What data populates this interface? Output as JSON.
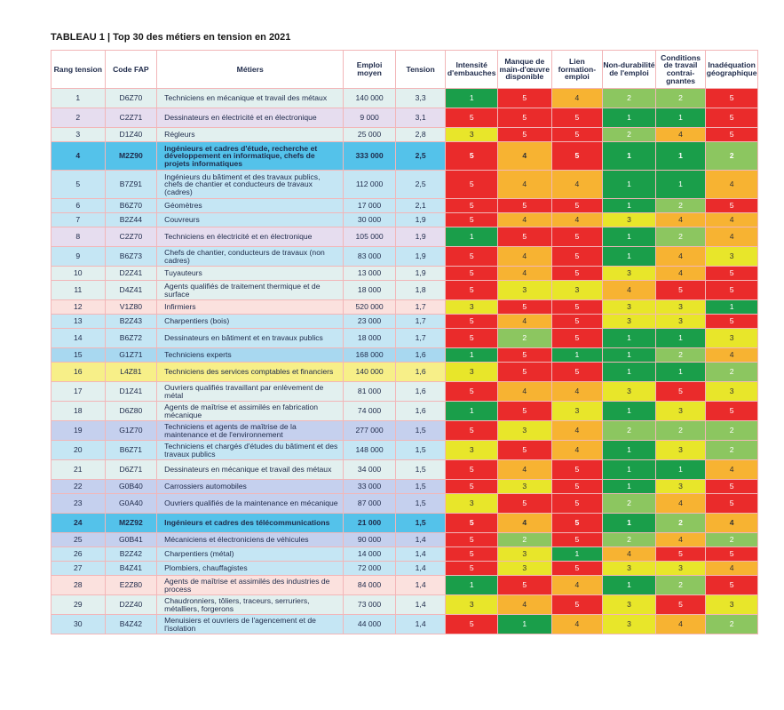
{
  "title": "TABLEAU 1 | Top 30 des métiers en tension en 2021",
  "headers": [
    "Rang tension",
    "Code FAP",
    "Métiers",
    "Emploi moyen",
    "Tension",
    "Intensité d'embauches",
    "Manque de main-d'œuvre disponible",
    "Lien formation-emploi",
    "Non-durabilité de l'emploi",
    "Conditions de travail contrai-gnantes",
    "Inadéquation géographique"
  ],
  "score_colors": {
    "1": "#1a9e4a",
    "2": "#8cc660",
    "3": "#e8e62a",
    "4": "#f7b332",
    "5": "#ea2b2b"
  },
  "row_colors": {
    "teal": "#e2f0ef",
    "lavender": "#e6ddef",
    "blue": "#c5e6f4",
    "cyan": "#54c2ea",
    "yellow": "#f7ef88",
    "peach": "#fbe1de",
    "sky": "#a8d8f0",
    "periwinkle": "#c5d0ee"
  },
  "rows": [
    {
      "rang": "1",
      "code": "D6Z70",
      "metier": "Techniciens en mécanique et travail des métaux",
      "emploi": "140 000",
      "tension": "3,3",
      "scores": [
        "1",
        "5",
        "4",
        "2",
        "2",
        "5"
      ],
      "color": "teal",
      "bold": false
    },
    {
      "rang": "2",
      "code": "C2Z71",
      "metier": "Dessinateurs en électricité et en électronique",
      "emploi": "9 000",
      "tension": "3,1",
      "scores": [
        "5",
        "5",
        "5",
        "1",
        "1",
        "5"
      ],
      "color": "lavender",
      "bold": false
    },
    {
      "rang": "3",
      "code": "D1Z40",
      "metier": "Régleurs",
      "emploi": "25 000",
      "tension": "2,8",
      "scores": [
        "3",
        "5",
        "5",
        "2",
        "4",
        "5"
      ],
      "color": "teal",
      "bold": false
    },
    {
      "rang": "4",
      "code": "M2Z90",
      "metier": "Ingénieurs et cadres d'étude, recherche et développement en informatique, chefs de projets informatiques",
      "emploi": "333 000",
      "tension": "2,5",
      "scores": [
        "5",
        "4",
        "5",
        "1",
        "1",
        "2"
      ],
      "color": "cyan",
      "bold": true
    },
    {
      "rang": "5",
      "code": "B7Z91",
      "metier": "Ingénieurs du bâtiment et des travaux publics, chefs de chantier et conducteurs de travaux (cadres)",
      "emploi": "112 000",
      "tension": "2,5",
      "scores": [
        "5",
        "4",
        "4",
        "1",
        "1",
        "4"
      ],
      "color": "blue",
      "bold": false
    },
    {
      "rang": "6",
      "code": "B6Z70",
      "metier": "Géomètres",
      "emploi": "17 000",
      "tension": "2,1",
      "scores": [
        "5",
        "5",
        "5",
        "1",
        "2",
        "5"
      ],
      "color": "blue",
      "bold": false
    },
    {
      "rang": "7",
      "code": "B2Z44",
      "metier": "Couvreurs",
      "emploi": "30 000",
      "tension": "1,9",
      "scores": [
        "5",
        "4",
        "4",
        "3",
        "4",
        "4"
      ],
      "color": "blue",
      "bold": false
    },
    {
      "rang": "8",
      "code": "C2Z70",
      "metier": "Techniciens en électricité et en électronique",
      "emploi": "105 000",
      "tension": "1,9",
      "scores": [
        "1",
        "5",
        "5",
        "1",
        "2",
        "4"
      ],
      "color": "lavender",
      "bold": false
    },
    {
      "rang": "9",
      "code": "B6Z73",
      "metier": "Chefs de chantier, conducteurs de travaux (non cadres)",
      "emploi": "83 000",
      "tension": "1,9",
      "scores": [
        "5",
        "4",
        "5",
        "1",
        "4",
        "3"
      ],
      "color": "blue",
      "bold": false
    },
    {
      "rang": "10",
      "code": "D2Z41",
      "metier": "Tuyauteurs",
      "emploi": "13 000",
      "tension": "1,9",
      "scores": [
        "5",
        "4",
        "5",
        "3",
        "4",
        "5"
      ],
      "color": "teal",
      "bold": false
    },
    {
      "rang": "11",
      "code": "D4Z41",
      "metier": "Agents qualifiés de traitement thermique et de surface",
      "emploi": "18 000",
      "tension": "1,8",
      "scores": [
        "5",
        "3",
        "3",
        "4",
        "5",
        "5"
      ],
      "color": "teal",
      "bold": false
    },
    {
      "rang": "12",
      "code": "V1Z80",
      "metier": "Infirmiers",
      "emploi": "520 000",
      "tension": "1,7",
      "scores": [
        "3",
        "5",
        "5",
        "3",
        "3",
        "1"
      ],
      "color": "peach",
      "bold": false
    },
    {
      "rang": "13",
      "code": "B2Z43",
      "metier": "Charpentiers (bois)",
      "emploi": "23 000",
      "tension": "1,7",
      "scores": [
        "5",
        "4",
        "5",
        "3",
        "3",
        "5"
      ],
      "color": "blue",
      "bold": false
    },
    {
      "rang": "14",
      "code": "B6Z72",
      "metier": "Dessinateurs en bâtiment et en travaux publics",
      "emploi": "18 000",
      "tension": "1,7",
      "scores": [
        "5",
        "2",
        "5",
        "1",
        "1",
        "3"
      ],
      "color": "blue",
      "bold": false
    },
    {
      "rang": "15",
      "code": "G1Z71",
      "metier": "Techniciens experts",
      "emploi": "168 000",
      "tension": "1,6",
      "scores": [
        "1",
        "5",
        "1",
        "1",
        "2",
        "4"
      ],
      "color": "sky",
      "bold": false
    },
    {
      "rang": "16",
      "code": "L4Z81",
      "metier": "Techniciens des services comptables et financiers",
      "emploi": "140 000",
      "tension": "1,6",
      "scores": [
        "3",
        "5",
        "5",
        "1",
        "1",
        "2"
      ],
      "color": "yellow",
      "bold": false
    },
    {
      "rang": "17",
      "code": "D1Z41",
      "metier": "Ouvriers qualifiés travaillant par enlèvement de métal",
      "emploi": "81 000",
      "tension": "1,6",
      "scores": [
        "5",
        "4",
        "4",
        "3",
        "5",
        "3"
      ],
      "color": "teal",
      "bold": false
    },
    {
      "rang": "18",
      "code": "D6Z80",
      "metier": "Agents de maîtrise et assimilés en fabrication mécanique",
      "emploi": "74 000",
      "tension": "1,6",
      "scores": [
        "1",
        "5",
        "3",
        "1",
        "3",
        "5"
      ],
      "color": "teal",
      "bold": false
    },
    {
      "rang": "19",
      "code": "G1Z70",
      "metier": "Techniciens et agents de maîtrise de la maintenance et de l'environnement",
      "emploi": "277 000",
      "tension": "1,5",
      "scores": [
        "5",
        "3",
        "4",
        "2",
        "2",
        "2"
      ],
      "color": "periwinkle",
      "bold": false
    },
    {
      "rang": "20",
      "code": "B6Z71",
      "metier": "Techniciens et chargés d'études du bâtiment et des travaux publics",
      "emploi": "148 000",
      "tension": "1,5",
      "scores": [
        "3",
        "5",
        "4",
        "1",
        "3",
        "2"
      ],
      "color": "blue",
      "bold": false
    },
    {
      "rang": "21",
      "code": "D6Z71",
      "metier": "Dessinateurs en mécanique et travail des métaux",
      "emploi": "34 000",
      "tension": "1,5",
      "scores": [
        "5",
        "4",
        "5",
        "1",
        "1",
        "4"
      ],
      "color": "teal",
      "bold": false
    },
    {
      "rang": "22",
      "code": "G0B40",
      "metier": "Carrossiers automobiles",
      "emploi": "33 000",
      "tension": "1,5",
      "scores": [
        "5",
        "3",
        "5",
        "1",
        "3",
        "5"
      ],
      "color": "periwinkle",
      "bold": false
    },
    {
      "rang": "23",
      "code": "G0A40",
      "metier": "Ouvriers qualifiés de la maintenance en mécanique",
      "emploi": "87 000",
      "tension": "1,5",
      "scores": [
        "3",
        "5",
        "5",
        "2",
        "4",
        "5"
      ],
      "color": "periwinkle",
      "bold": false
    },
    {
      "rang": "24",
      "code": "M2Z92",
      "metier": "Ingénieurs et cadres des télécommunications",
      "emploi": "21 000",
      "tension": "1,5",
      "scores": [
        "5",
        "4",
        "5",
        "1",
        "2",
        "4"
      ],
      "color": "cyan",
      "bold": true
    },
    {
      "rang": "25",
      "code": "G0B41",
      "metier": "Mécaniciens et électroniciens de véhicules",
      "emploi": "90 000",
      "tension": "1,4",
      "scores": [
        "5",
        "2",
        "5",
        "2",
        "4",
        "2"
      ],
      "color": "periwinkle",
      "bold": false
    },
    {
      "rang": "26",
      "code": "B2Z42",
      "metier": "Charpentiers (métal)",
      "emploi": "14 000",
      "tension": "1,4",
      "scores": [
        "5",
        "3",
        "1",
        "4",
        "5",
        "5"
      ],
      "color": "blue",
      "bold": false
    },
    {
      "rang": "27",
      "code": "B4Z41",
      "metier": "Plombiers, chauffagistes",
      "emploi": "72 000",
      "tension": "1,4",
      "scores": [
        "5",
        "3",
        "5",
        "3",
        "3",
        "4"
      ],
      "color": "blue",
      "bold": false
    },
    {
      "rang": "28",
      "code": "E2Z80",
      "metier": "Agents de maîtrise et assimilés des industries de process",
      "emploi": "84 000",
      "tension": "1,4",
      "scores": [
        "1",
        "5",
        "4",
        "1",
        "2",
        "5"
      ],
      "color": "peach",
      "bold": false
    },
    {
      "rang": "29",
      "code": "D2Z40",
      "metier": "Chaudronniers, tôliers, traceurs, serruriers, métalliers, forgerons",
      "emploi": "73 000",
      "tension": "1,4",
      "scores": [
        "3",
        "4",
        "5",
        "3",
        "5",
        "3"
      ],
      "color": "teal",
      "bold": false
    },
    {
      "rang": "30",
      "code": "B4Z42",
      "metier": "Menuisiers et ouvriers de l'agencement et de l'isolation",
      "emploi": "44 000",
      "tension": "1,4",
      "scores": [
        "5",
        "1",
        "4",
        "3",
        "4",
        "2"
      ],
      "color": "blue",
      "bold": false
    }
  ]
}
